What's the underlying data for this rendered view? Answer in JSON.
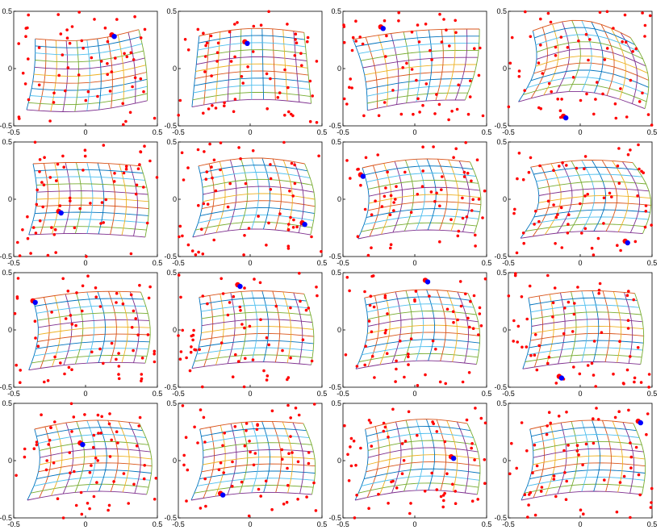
{
  "chart_data": {
    "type": "scatter",
    "layout": {
      "rows": 4,
      "cols": 4
    },
    "xlim": [
      -0.5,
      0.5
    ],
    "ylim": [
      -0.5,
      0.5
    ],
    "xticks": [
      "-0.5",
      "0",
      "0.5"
    ],
    "yticks": [
      "0.5",
      "0",
      "-0.5"
    ],
    "grid": false,
    "grid_line_colors": [
      "#0072bd",
      "#d95319",
      "#edb120",
      "#7e2f8e",
      "#77ac30",
      "#4dbeee"
    ],
    "point_color": "#ff0000",
    "highlight_color": "#0000ff",
    "panels": [
      {
        "id": "p11",
        "warp": [
          0.02,
          -0.05,
          0.06,
          0.08
        ],
        "highlight": [
          0.2,
          0.28
        ],
        "points_seed": 11
      },
      {
        "id": "p12",
        "warp": [
          0.0,
          0.05,
          0.05,
          0.03
        ],
        "highlight": [
          -0.02,
          0.22
        ],
        "points_seed": 12
      },
      {
        "id": "p13",
        "warp": [
          0.03,
          0.03,
          -0.1,
          0.09
        ],
        "highlight": [
          -0.22,
          0.35
        ],
        "points_seed": 13
      },
      {
        "id": "p14",
        "warp": [
          0.07,
          0.12,
          0.1,
          -0.06
        ],
        "highlight": [
          -0.1,
          -0.43
        ],
        "points_seed": 14
      },
      {
        "id": "p21",
        "warp": [
          0.04,
          0.02,
          0.03,
          -0.02
        ],
        "highlight": [
          -0.17,
          -0.12
        ],
        "points_seed": 21
      },
      {
        "id": "p22",
        "warp": [
          0.05,
          0.06,
          0.04,
          0.02
        ],
        "highlight": [
          0.38,
          -0.22
        ],
        "points_seed": 22
      },
      {
        "id": "p23",
        "warp": [
          0.06,
          0.05,
          0.03,
          0.05
        ],
        "highlight": [
          -0.36,
          0.2
        ],
        "points_seed": 23
      },
      {
        "id": "p24",
        "warp": [
          0.09,
          0.04,
          0.07,
          0.04
        ],
        "highlight": [
          0.33,
          -0.38
        ],
        "points_seed": 24
      },
      {
        "id": "p31",
        "warp": [
          0.05,
          0.03,
          0.03,
          0.06
        ],
        "highlight": [
          -0.35,
          0.24
        ],
        "points_seed": 31
      },
      {
        "id": "p32",
        "warp": [
          0.04,
          0.04,
          0.05,
          0.03
        ],
        "highlight": [
          -0.07,
          0.38
        ],
        "points_seed": 32
      },
      {
        "id": "p33",
        "warp": [
          0.05,
          0.05,
          0.06,
          0.04
        ],
        "highlight": [
          0.09,
          0.42
        ],
        "points_seed": 33
      },
      {
        "id": "p34",
        "warp": [
          0.04,
          0.04,
          0.04,
          0.04
        ],
        "highlight": [
          -0.13,
          -0.42
        ],
        "points_seed": 34
      },
      {
        "id": "p41",
        "warp": [
          0.06,
          0.05,
          0.05,
          0.05
        ],
        "highlight": [
          -0.02,
          0.14
        ],
        "points_seed": 41
      },
      {
        "id": "p42",
        "warp": [
          0.05,
          0.04,
          0.06,
          0.05
        ],
        "highlight": [
          -0.19,
          -0.3
        ],
        "points_seed": 42
      },
      {
        "id": "p43",
        "warp": [
          0.05,
          0.06,
          0.07,
          0.05
        ],
        "highlight": [
          0.27,
          0.02
        ],
        "points_seed": 43
      },
      {
        "id": "p44",
        "warp": [
          0.05,
          0.05,
          0.06,
          0.05
        ],
        "highlight": [
          0.42,
          0.33
        ],
        "points_seed": 44
      }
    ]
  }
}
